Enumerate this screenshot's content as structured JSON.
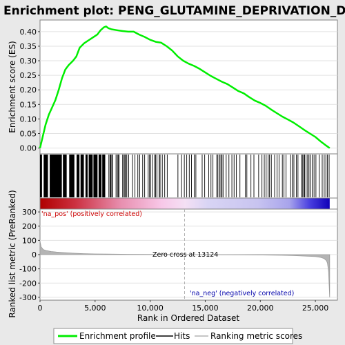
{
  "colors": {
    "background": "#e9e9e9",
    "es_curve": "#00ee00",
    "hits": "#000000",
    "positive_label": "#cc0000",
    "negative_label": "#0000aa",
    "metric_fill": "#b4b4b4"
  },
  "chart_data": [
    {
      "type": "line",
      "title": "Enrichment plot: PENG_GLUTAMINE_DEPRIVATION_DN",
      "ylabel": "Enrichment score (ES)",
      "xlim": [
        0,
        27000
      ],
      "ylim": [
        -0.02,
        0.44
      ],
      "y_ticks": [
        "0.00",
        "0.05",
        "0.10",
        "0.15",
        "0.20",
        "0.25",
        "0.30",
        "0.35",
        "0.40"
      ],
      "grid": true,
      "series": [
        {
          "name": "Enrichment profile",
          "x": [
            0,
            250,
            500,
            800,
            1100,
            1400,
            1700,
            2000,
            2300,
            2600,
            3000,
            3300,
            3600,
            4000,
            4400,
            4800,
            5200,
            5500,
            5800,
            6000,
            6200,
            6500,
            7000,
            7500,
            8000,
            8500,
            9000,
            9500,
            10000,
            10500,
            11000,
            11500,
            12000,
            12500,
            13000,
            13500,
            14000,
            14500,
            15000,
            15500,
            16000,
            16500,
            17000,
            17500,
            18000,
            18500,
            19000,
            19500,
            20000,
            20500,
            21000,
            21500,
            22000,
            22500,
            23000,
            23500,
            24000,
            24500,
            25000,
            25500,
            26000,
            26300
          ],
          "values": [
            0.0,
            0.04,
            0.08,
            0.115,
            0.14,
            0.165,
            0.2,
            0.24,
            0.27,
            0.285,
            0.3,
            0.315,
            0.345,
            0.36,
            0.37,
            0.38,
            0.39,
            0.405,
            0.415,
            0.418,
            0.412,
            0.408,
            0.405,
            0.402,
            0.4,
            0.4,
            0.39,
            0.382,
            0.372,
            0.365,
            0.362,
            0.35,
            0.335,
            0.315,
            0.3,
            0.29,
            0.282,
            0.272,
            0.26,
            0.248,
            0.238,
            0.228,
            0.22,
            0.208,
            0.196,
            0.188,
            0.175,
            0.163,
            0.155,
            0.145,
            0.132,
            0.12,
            0.108,
            0.098,
            0.088,
            0.075,
            0.062,
            0.05,
            0.038,
            0.022,
            0.008,
            0.0
          ]
        }
      ]
    },
    {
      "type": "bar",
      "ylabel": "Ranked list metric (PreRanked)",
      "xlabel": "Rank in Ordered Dataset",
      "xlim": [
        0,
        27000
      ],
      "ylim": [
        -320,
        320
      ],
      "x_ticks": [
        "0",
        "5,000",
        "10,000",
        "15,000",
        "20,000",
        "25,000"
      ],
      "y_ticks": [
        "300",
        "200",
        "100",
        "0",
        "-100",
        "-200",
        "-300"
      ],
      "series": [
        {
          "name": "Ranking metric scores",
          "x": [
            0,
            100,
            300,
            600,
            1000,
            1500,
            2000,
            3000,
            4000,
            5000,
            6000,
            8000,
            10000,
            12000,
            13124,
            15000,
            18000,
            20000,
            22000,
            23000,
            24000,
            25000,
            25500,
            25800,
            26000,
            26100,
            26200,
            26300
          ],
          "values": [
            95,
            55,
            35,
            28,
            22,
            18,
            15,
            10,
            7,
            5,
            4,
            2.5,
            1.5,
            0.8,
            0,
            -0.8,
            -2,
            -3,
            -5,
            -7,
            -10,
            -14,
            -20,
            -28,
            -42,
            -60,
            -120,
            -300
          ]
        }
      ],
      "annotations": {
        "zero_cross": "Zero cross at 13124",
        "zero_cross_x": 13124,
        "positive": "'na_pos' (positively correlated)",
        "negative": "'na_neg' (negatively correlated)"
      }
    }
  ],
  "hits": {
    "dense_ranges": [
      [
        0,
        180
      ],
      [
        330,
        720
      ],
      [
        880,
        1980
      ],
      [
        2080,
        2420
      ],
      [
        2650,
        3120
      ],
      [
        3320,
        3580
      ],
      [
        3680,
        3980
      ],
      [
        4130,
        4320
      ],
      [
        4420,
        4780
      ],
      [
        4850,
        5220
      ],
      [
        5320,
        5580
      ],
      [
        5650,
        5920
      ]
    ],
    "positions": [
      6250,
      6350,
      6420,
      6510,
      6600,
      6900,
      7020,
      7100,
      7180,
      7500,
      7620,
      7700,
      7780,
      7880,
      8050,
      8400,
      8620,
      8880,
      9050,
      9320,
      9500,
      9820,
      9950,
      10020,
      10210,
      10400,
      10500,
      10620,
      10820,
      10900,
      11100,
      11320,
      11550,
      12520,
      12850,
      13100,
      13320,
      13550,
      13750,
      14000,
      14150,
      14720,
      14950,
      15320,
      15520,
      15700,
      16050,
      16150,
      16320,
      16420,
      16520,
      16620,
      16900,
      17150,
      17420,
      17620,
      17830,
      18150,
      18650,
      18780,
      19150,
      19420,
      19850,
      20150,
      20360,
      20530,
      20700,
      20840,
      21000,
      21300,
      21520,
      21700,
      22000,
      22150,
      22330,
      22750,
      22900,
      23050,
      23280,
      23420,
      23720,
      23850,
      23950,
      24020,
      24150,
      24300,
      24420,
      24550,
      24720,
      24880,
      25050,
      25350,
      25620,
      25800,
      25950,
      26100,
      26250
    ]
  },
  "legend": {
    "items": [
      {
        "label": "Enrichment profile",
        "color": "#00ee00"
      },
      {
        "label": "Hits",
        "color": "#000000"
      },
      {
        "label": "Ranking metric scores",
        "color": "#b4b4b4"
      }
    ]
  }
}
